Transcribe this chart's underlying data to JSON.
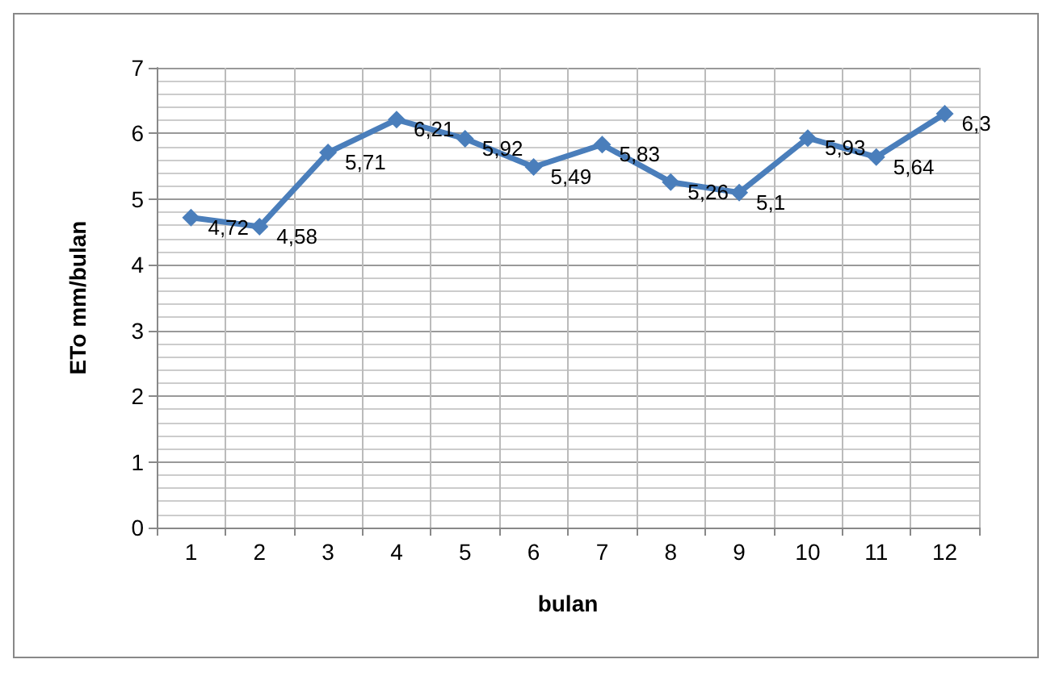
{
  "chart_data": {
    "type": "line",
    "xlabel": "bulan",
    "ylabel": "ETo mm/bulan",
    "categories": [
      "1",
      "2",
      "3",
      "4",
      "5",
      "6",
      "7",
      "8",
      "9",
      "10",
      "11",
      "12"
    ],
    "series": [
      {
        "color": "#4a7ebb",
        "values": [
          4.72,
          4.58,
          5.71,
          6.21,
          5.92,
          5.49,
          5.83,
          5.26,
          5.1,
          5.93,
          5.64,
          6.3
        ],
        "value_labels": [
          "4,72",
          "4,58",
          "5,71",
          "6,21",
          "5,92",
          "5,49",
          "5,83",
          "5,26",
          "5,1",
          "5,93",
          "5,64",
          "6,3"
        ]
      }
    ],
    "ylim": [
      0,
      7
    ],
    "yticks": [
      0,
      1,
      2,
      3,
      4,
      5,
      6,
      7
    ],
    "grid": true,
    "marker": "diamond",
    "line_style": "solid"
  }
}
